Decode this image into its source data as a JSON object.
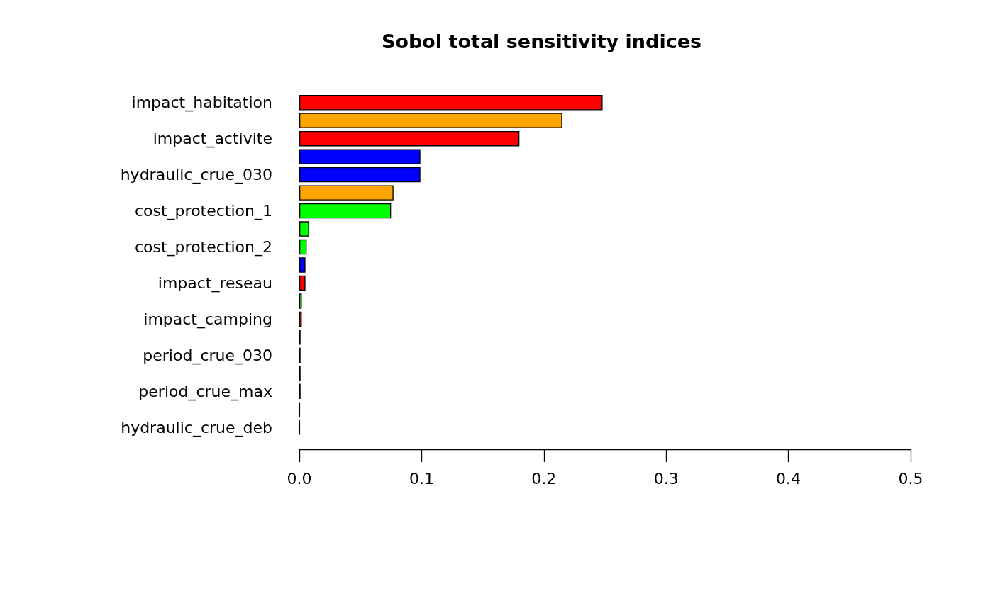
{
  "chart_data": {
    "type": "bar",
    "orientation": "horizontal",
    "title": "Sobol total sensitivity indices",
    "categories": [
      "impact_habitation",
      null,
      "impact_activite",
      null,
      "hydraulic_crue_030",
      null,
      "cost_protection_1",
      null,
      "cost_protection_2",
      null,
      "impact_reseau",
      null,
      "impact_camping",
      null,
      "period_crue_030",
      null,
      "period_crue_max",
      null,
      "hydraulic_crue_deb"
    ],
    "values": [
      0.248,
      0.215,
      0.18,
      0.099,
      0.099,
      0.077,
      0.075,
      0.008,
      0.006,
      0.005,
      0.005,
      0.002,
      0.002,
      0.001,
      0.001,
      0.001,
      0.001,
      0.0005,
      0.0005
    ],
    "colors": [
      "#ff0000",
      "#ffa500",
      "#ff0000",
      "#0000ff",
      "#0000ff",
      "#ffa500",
      "#00ff00",
      "#00ff00",
      "#00ff00",
      "#0000ff",
      "#ff0000",
      "#00ff00",
      "#ff0000",
      "#000000",
      "#000000",
      "#000000",
      "#000000",
      "#000000",
      "#000000"
    ],
    "xlim": [
      0,
      0.5
    ],
    "xticks": [
      {
        "value": 0,
        "label": "0.0"
      },
      0.1,
      0.2,
      0.3,
      0.4,
      0.5
    ],
    "grid": false
  }
}
